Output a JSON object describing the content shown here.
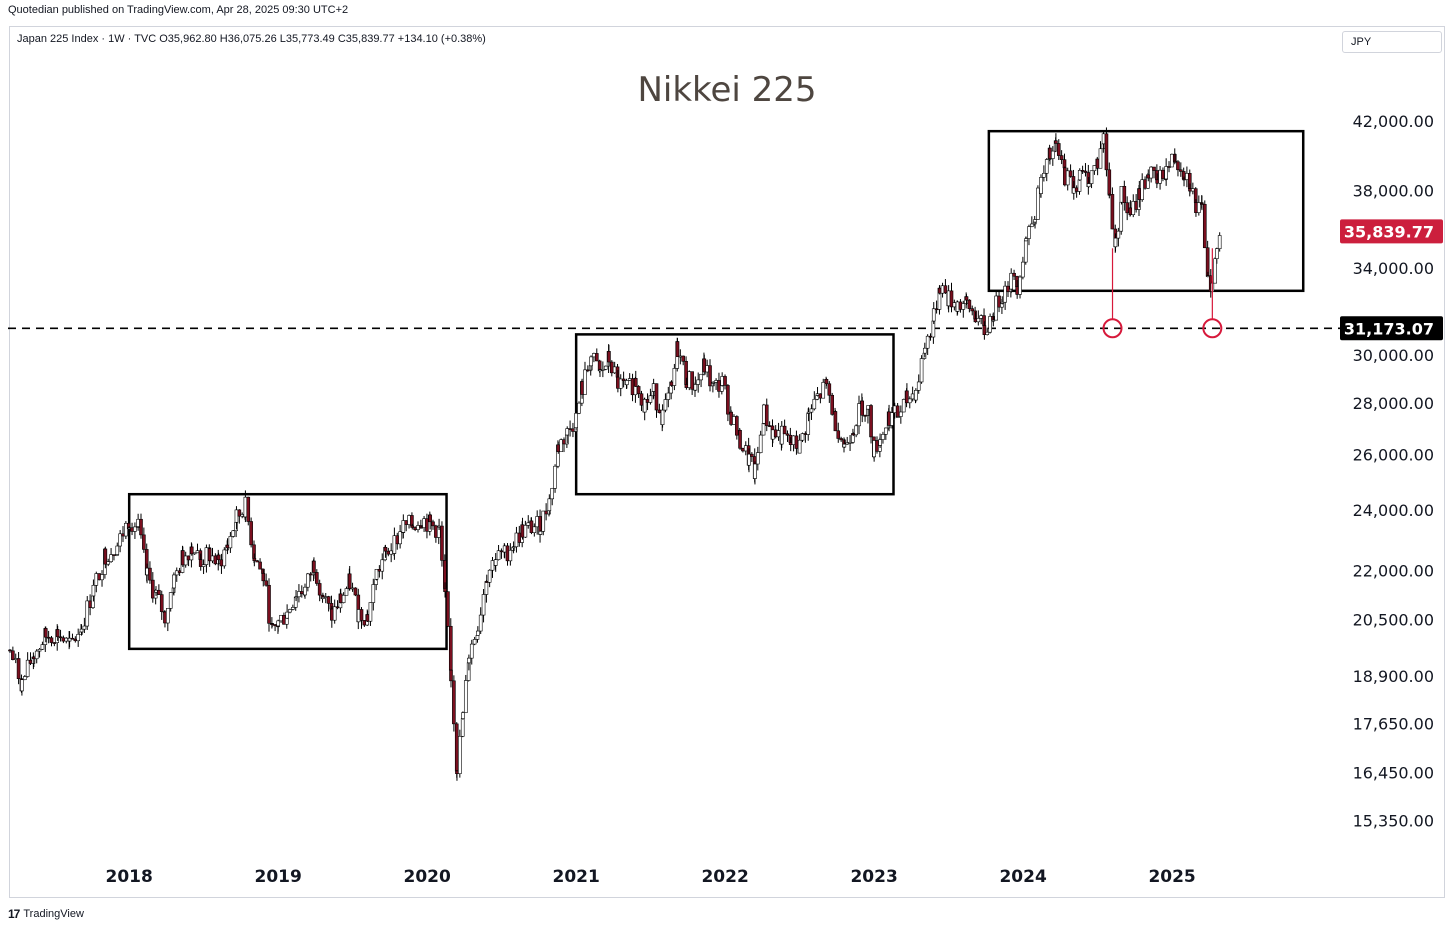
{
  "header": {
    "published": "Quotedian published on TradingView.com, Apr 28, 2025 09:30 UTC+2",
    "symbol_line": "Japan 225 Index · 1W · TVC  O35,962.80  H36,075.26  L35,773.49  C35,839.77  +134.10 (+0.38%)",
    "currency": "JPY"
  },
  "footer": {
    "logo_glyph": "17",
    "brand": "TradingView"
  },
  "chart_data": {
    "type": "candlestick",
    "title": "Nikkei 225",
    "xlabel": "",
    "ylabel": "",
    "scale": "log",
    "ylim": [
      14500,
      43300
    ],
    "y_ticks": [
      {
        "value": 42000,
        "label": "42,000.00"
      },
      {
        "value": 38000,
        "label": "38,000.00"
      },
      {
        "value": 34000,
        "label": "34,000.00"
      },
      {
        "value": 30000,
        "label": "30,000.00"
      },
      {
        "value": 28000,
        "label": "28,000.00"
      },
      {
        "value": 26000,
        "label": "26,000.00"
      },
      {
        "value": 24000,
        "label": "24,000.00"
      },
      {
        "value": 22000,
        "label": "22,000.00"
      },
      {
        "value": 20500,
        "label": "20,500.00"
      },
      {
        "value": 18900,
        "label": "18,900.00"
      },
      {
        "value": 17650,
        "label": "17,650.00"
      },
      {
        "value": 16450,
        "label": "16,450.00"
      },
      {
        "value": 15350,
        "label": "15,350.00"
      }
    ],
    "x_ticks": [
      {
        "value": 2018,
        "label": "2018"
      },
      {
        "value": 2019,
        "label": "2019"
      },
      {
        "value": 2020,
        "label": "2020"
      },
      {
        "value": 2021,
        "label": "2021"
      },
      {
        "value": 2022,
        "label": "2022"
      },
      {
        "value": 2023,
        "label": "2023"
      },
      {
        "value": 2024,
        "label": "2024"
      },
      {
        "value": 2025,
        "label": "2025"
      }
    ],
    "xlim": [
      2017.2,
      2026.1
    ],
    "grid": false,
    "last_price": {
      "value": 35839.77,
      "label": "35,839.77",
      "color": "#cc1f3d"
    },
    "support_line": {
      "value": 31173.07,
      "label": "31,173.07",
      "color": "#000000"
    },
    "up_color": "#ffffff",
    "down_color": "#7a0f1f",
    "wick_color": "#000000",
    "accent_color": "#d7193b",
    "ranges": [
      {
        "x0": 2018.0,
        "x1": 2020.13,
        "y0": 19650,
        "y1": 24550
      },
      {
        "x0": 2021.0,
        "x1": 2023.13,
        "y0": 24550,
        "y1": 30900
      },
      {
        "x0": 2023.77,
        "x1": 2025.88,
        "y0": 32900,
        "y1": 41400
      }
    ],
    "markers": [
      {
        "x": 2024.6,
        "y": 31173.07
      },
      {
        "x": 2025.27,
        "y": 31173.07
      }
    ],
    "series": [
      {
        "closes": [
          [
            2017.2,
            19600
          ],
          [
            2017.28,
            18700
          ],
          [
            2017.36,
            19500
          ],
          [
            2017.44,
            20000
          ],
          [
            2017.52,
            20100
          ],
          [
            2017.6,
            19700
          ],
          [
            2017.68,
            20300
          ],
          [
            2017.76,
            21400
          ],
          [
            2017.84,
            22500
          ],
          [
            2017.92,
            22800
          ],
          [
            2018.0,
            23700
          ],
          [
            2018.06,
            23400
          ],
          [
            2018.12,
            21800
          ],
          [
            2018.18,
            21200
          ],
          [
            2018.24,
            20600
          ],
          [
            2018.3,
            21700
          ],
          [
            2018.36,
            22400
          ],
          [
            2018.42,
            22800
          ],
          [
            2018.48,
            22300
          ],
          [
            2018.54,
            22500
          ],
          [
            2018.6,
            22200
          ],
          [
            2018.66,
            22800
          ],
          [
            2018.72,
            23700
          ],
          [
            2018.78,
            24100
          ],
          [
            2018.84,
            22500
          ],
          [
            2018.9,
            21800
          ],
          [
            2018.96,
            20100
          ],
          [
            2019.0,
            20400
          ],
          [
            2019.06,
            20700
          ],
          [
            2019.12,
            21300
          ],
          [
            2019.18,
            21400
          ],
          [
            2019.24,
            22200
          ],
          [
            2019.3,
            21200
          ],
          [
            2019.36,
            20600
          ],
          [
            2019.42,
            21100
          ],
          [
            2019.48,
            21600
          ],
          [
            2019.54,
            20700
          ],
          [
            2019.6,
            20600
          ],
          [
            2019.66,
            21900
          ],
          [
            2019.72,
            22500
          ],
          [
            2019.78,
            22900
          ],
          [
            2019.84,
            23400
          ],
          [
            2019.9,
            23500
          ],
          [
            2019.96,
            23700
          ],
          [
            2020.02,
            23500
          ],
          [
            2020.08,
            23300
          ],
          [
            2020.12,
            21100
          ],
          [
            2020.16,
            18900
          ],
          [
            2020.2,
            16600
          ],
          [
            2020.24,
            17800
          ],
          [
            2020.28,
            19500
          ],
          [
            2020.34,
            20300
          ],
          [
            2020.4,
            21900
          ],
          [
            2020.46,
            22400
          ],
          [
            2020.52,
            22500
          ],
          [
            2020.58,
            22900
          ],
          [
            2020.64,
            23300
          ],
          [
            2020.7,
            23400
          ],
          [
            2020.76,
            23500
          ],
          [
            2020.82,
            24300
          ],
          [
            2020.88,
            26300
          ],
          [
            2020.94,
            26800
          ],
          [
            2021.0,
            27400
          ],
          [
            2021.04,
            28600
          ],
          [
            2021.1,
            29900
          ],
          [
            2021.16,
            29200
          ],
          [
            2021.22,
            29800
          ],
          [
            2021.28,
            28800
          ],
          [
            2021.34,
            28500
          ],
          [
            2021.4,
            28900
          ],
          [
            2021.46,
            28000
          ],
          [
            2021.52,
            28400
          ],
          [
            2021.58,
            27500
          ],
          [
            2021.64,
            28500
          ],
          [
            2021.68,
            30300
          ],
          [
            2021.74,
            29000
          ],
          [
            2021.8,
            28700
          ],
          [
            2021.86,
            29500
          ],
          [
            2021.92,
            28600
          ],
          [
            2021.98,
            28800
          ],
          [
            2022.04,
            27500
          ],
          [
            2022.1,
            26500
          ],
          [
            2022.16,
            25800
          ],
          [
            2022.2,
            25300
          ],
          [
            2022.26,
            27600
          ],
          [
            2022.32,
            26800
          ],
          [
            2022.38,
            26700
          ],
          [
            2022.44,
            26400
          ],
          [
            2022.5,
            26300
          ],
          [
            2022.56,
            27500
          ],
          [
            2022.62,
            28200
          ],
          [
            2022.68,
            28700
          ],
          [
            2022.74,
            27300
          ],
          [
            2022.8,
            26300
          ],
          [
            2022.86,
            27100
          ],
          [
            2022.92,
            27900
          ],
          [
            2022.96,
            27600
          ],
          [
            2023.0,
            26200
          ],
          [
            2023.04,
            26600
          ],
          [
            2023.1,
            27500
          ],
          [
            2023.16,
            27500
          ],
          [
            2023.22,
            28100
          ],
          [
            2023.28,
            28500
          ],
          [
            2023.34,
            30300
          ],
          [
            2023.4,
            31600
          ],
          [
            2023.44,
            33200
          ],
          [
            2023.5,
            32500
          ],
          [
            2023.56,
            32300
          ],
          [
            2023.62,
            32200
          ],
          [
            2023.68,
            31800
          ],
          [
            2023.74,
            31000
          ],
          [
            2023.8,
            31900
          ],
          [
            2023.86,
            32800
          ],
          [
            2023.92,
            33400
          ],
          [
            2023.96,
            33200
          ],
          [
            2024.02,
            35500
          ],
          [
            2024.08,
            36900
          ],
          [
            2024.12,
            38400
          ],
          [
            2024.18,
            39900
          ],
          [
            2024.22,
            40400
          ],
          [
            2024.28,
            38900
          ],
          [
            2024.34,
            38200
          ],
          [
            2024.38,
            38800
          ],
          [
            2024.44,
            38700
          ],
          [
            2024.5,
            39600
          ],
          [
            2024.54,
            40900
          ],
          [
            2024.58,
            37700
          ],
          [
            2024.62,
            35100
          ],
          [
            2024.66,
            37800
          ],
          [
            2024.72,
            36600
          ],
          [
            2024.78,
            37900
          ],
          [
            2024.84,
            39000
          ],
          [
            2024.9,
            38400
          ],
          [
            2024.96,
            39200
          ],
          [
            2025.02,
            39900
          ],
          [
            2025.08,
            39100
          ],
          [
            2025.12,
            38500
          ],
          [
            2025.16,
            37100
          ],
          [
            2025.2,
            36800
          ],
          [
            2025.24,
            33800
          ],
          [
            2025.27,
            33100
          ],
          [
            2025.3,
            34900
          ],
          [
            2025.33,
            35840
          ]
        ]
      }
    ]
  }
}
